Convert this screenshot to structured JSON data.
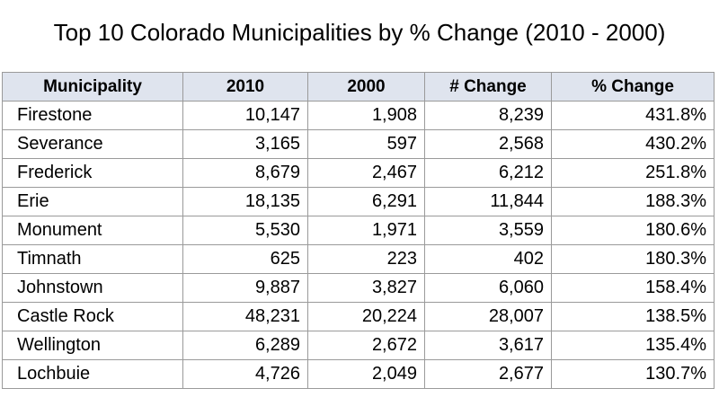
{
  "title": "Top 10 Colorado Municipalities by % Change (2010 - 2000)",
  "table": {
    "headers": [
      "Municipality",
      "2010",
      "2000",
      "# Change",
      "% Change"
    ],
    "rows": [
      [
        "Firestone",
        "10,147",
        "1,908",
        "8,239",
        "431.8%"
      ],
      [
        "Severance",
        "3,165",
        "597",
        "2,568",
        "430.2%"
      ],
      [
        "Frederick",
        "8,679",
        "2,467",
        "6,212",
        "251.8%"
      ],
      [
        "Erie",
        "18,135",
        "6,291",
        "11,844",
        "188.3%"
      ],
      [
        "Monument",
        "5,530",
        "1,971",
        "3,559",
        "180.6%"
      ],
      [
        "Timnath",
        "625",
        "223",
        "402",
        "180.3%"
      ],
      [
        "Johnstown",
        "9,887",
        "3,827",
        "6,060",
        "158.4%"
      ],
      [
        "Castle Rock",
        "48,231",
        "20,224",
        "28,007",
        "138.5%"
      ],
      [
        "Wellington",
        "6,289",
        "2,672",
        "3,617",
        "135.4%"
      ],
      [
        "Lochbuie",
        "4,726",
        "2,049",
        "2,677",
        "130.7%"
      ]
    ]
  },
  "colors": {
    "header_background": "#dfe4ee",
    "grid_line": "#9a9a9a"
  }
}
